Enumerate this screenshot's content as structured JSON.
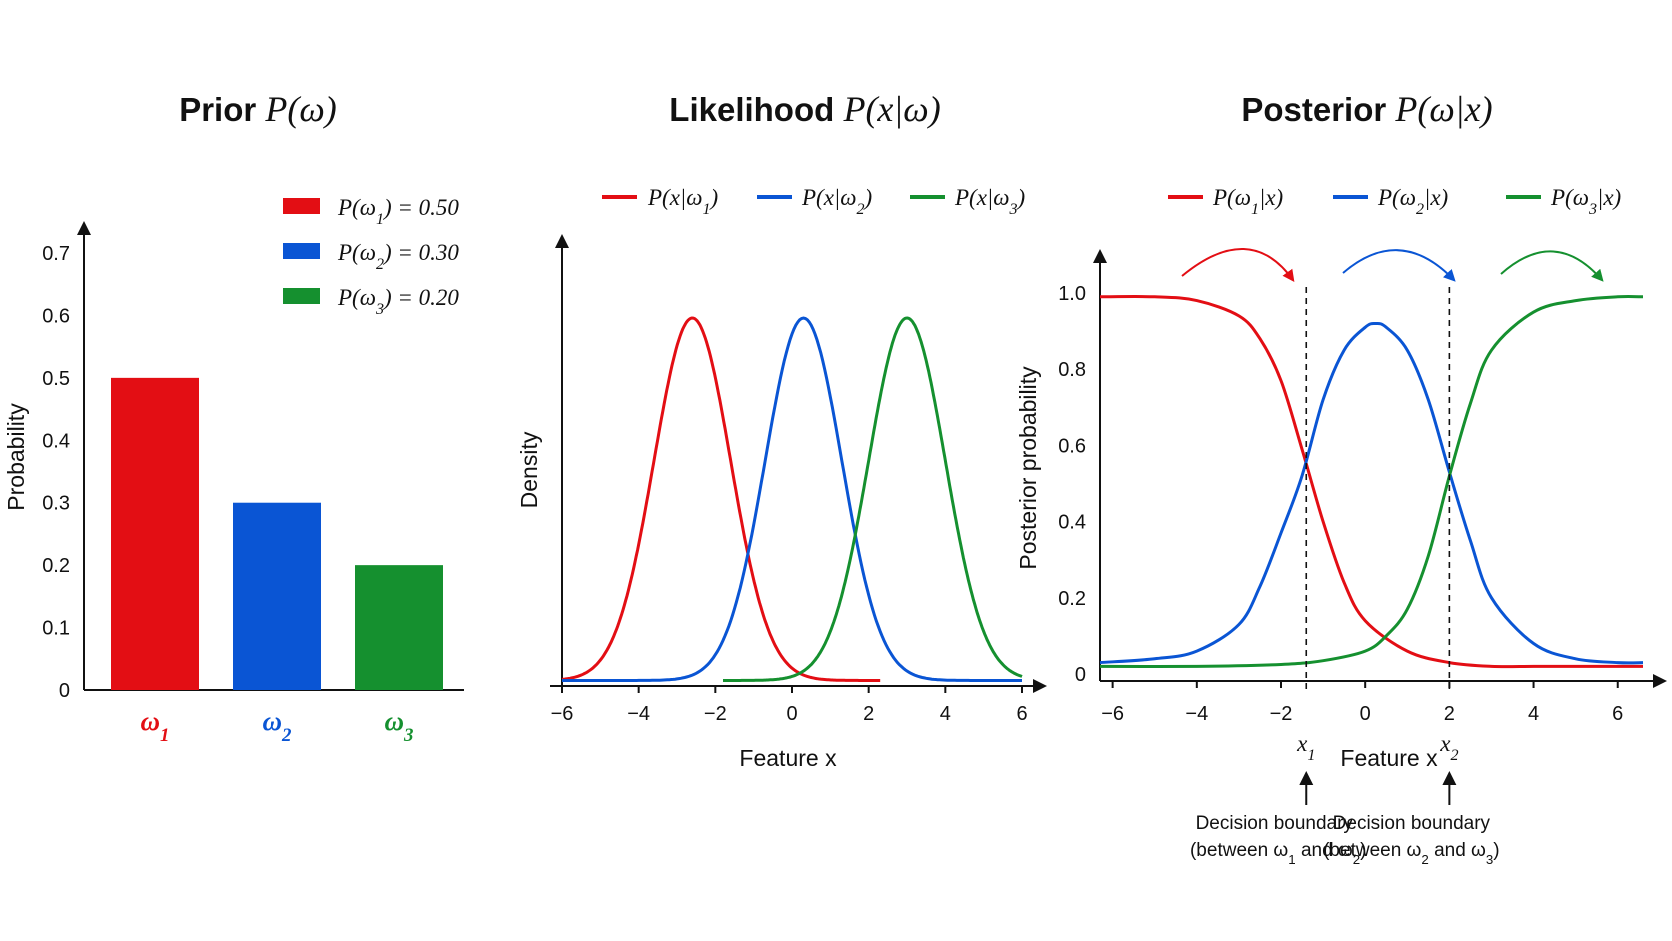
{
  "colors": {
    "c1": "#e30e14",
    "c2": "#0a55d4",
    "c3": "#15902f"
  },
  "chart_data": [
    {
      "type": "bar",
      "title": "Prior P(ω)",
      "ylabel": "Probability",
      "categories": [
        "ω1",
        "ω2",
        "ω3"
      ],
      "values": [
        0.5,
        0.3,
        0.2
      ],
      "ylim": [
        0,
        0.7
      ],
      "yticks": [
        "0",
        "0.1",
        "0.2",
        "0.3",
        "0.4",
        "0.5",
        "0.6",
        "0.7"
      ],
      "legend": [
        "P(ω1) = 0.50",
        "P(ω2) = 0.30",
        "P(ω3) = 0.20"
      ],
      "legend_position": "top-right",
      "grid": false
    },
    {
      "type": "line",
      "title": "Likelihood P(x|ω)",
      "xlabel": "Feature x",
      "ylabel": "Density",
      "xlim": [
        -6,
        6
      ],
      "xticks": [
        "−6",
        "−4",
        "−2",
        "0",
        "2",
        "4",
        "6"
      ],
      "series": [
        {
          "name": "P(x|ω1)",
          "mean": -2.6,
          "sd": 1.0,
          "x_range": [
            -6,
            2.3
          ]
        },
        {
          "name": "P(x|ω2)",
          "mean": 0.3,
          "sd": 1.0,
          "x_range": [
            -6,
            6
          ]
        },
        {
          "name": "P(x|ω3)",
          "mean": 3.0,
          "sd": 1.0,
          "x_range": [
            -1.8,
            6
          ]
        }
      ],
      "legend_position": "top",
      "grid": false
    },
    {
      "type": "line",
      "title": "Posterior P(ω|x)",
      "xlabel": "Feature x",
      "ylabel": "Posterior probability",
      "xlim": [
        -6.3,
        6.6
      ],
      "ylim": [
        0,
        1.0
      ],
      "xticks": [
        "−6",
        "−4",
        "−2",
        "0",
        "2",
        "4",
        "6"
      ],
      "yticks": [
        "0",
        "0.2",
        "0.4",
        "0.6",
        "0.8",
        "1.0"
      ],
      "series": [
        {
          "name": "P(ω1|x)",
          "x": [
            -6.3,
            -5,
            -4,
            -3,
            -2.5,
            -2,
            -1.5,
            -1,
            -0.5,
            0,
            1,
            2,
            3,
            4,
            5,
            6,
            6.6
          ],
          "y": [
            0.99,
            0.99,
            0.98,
            0.94,
            0.88,
            0.77,
            0.59,
            0.4,
            0.24,
            0.14,
            0.06,
            0.03,
            0.02,
            0.02,
            0.02,
            0.02,
            0.02
          ]
        },
        {
          "name": "P(ω2|x)",
          "x": [
            -6.3,
            -5,
            -4,
            -3,
            -2.5,
            -2,
            -1.5,
            -1,
            -0.5,
            0,
            0.25,
            0.5,
            1,
            1.5,
            2,
            2.5,
            3,
            4,
            5,
            6,
            6.6
          ],
          "y": [
            0.03,
            0.04,
            0.06,
            0.13,
            0.23,
            0.37,
            0.52,
            0.72,
            0.85,
            0.91,
            0.92,
            0.91,
            0.85,
            0.72,
            0.53,
            0.35,
            0.2,
            0.08,
            0.04,
            0.03,
            0.03
          ]
        },
        {
          "name": "P(ω3|x)",
          "x": [
            -6.3,
            -4,
            -2,
            -1,
            0,
            0.5,
            1,
            1.5,
            2,
            2.5,
            3,
            4,
            5,
            6,
            6.6
          ],
          "y": [
            0.02,
            0.02,
            0.025,
            0.035,
            0.06,
            0.1,
            0.17,
            0.31,
            0.52,
            0.71,
            0.85,
            0.95,
            0.98,
            0.99,
            0.99
          ]
        }
      ],
      "boundaries": [
        {
          "x": -1.4,
          "label": "x1",
          "note_line1": "Decision boundary",
          "note_line2": "(between ω1 and ω2)"
        },
        {
          "x": 2.0,
          "label": "x2",
          "note_line1": "Decision boundary",
          "note_line2": "(between ω2 and ω3)"
        }
      ],
      "legend_position": "top",
      "grid": false
    }
  ]
}
